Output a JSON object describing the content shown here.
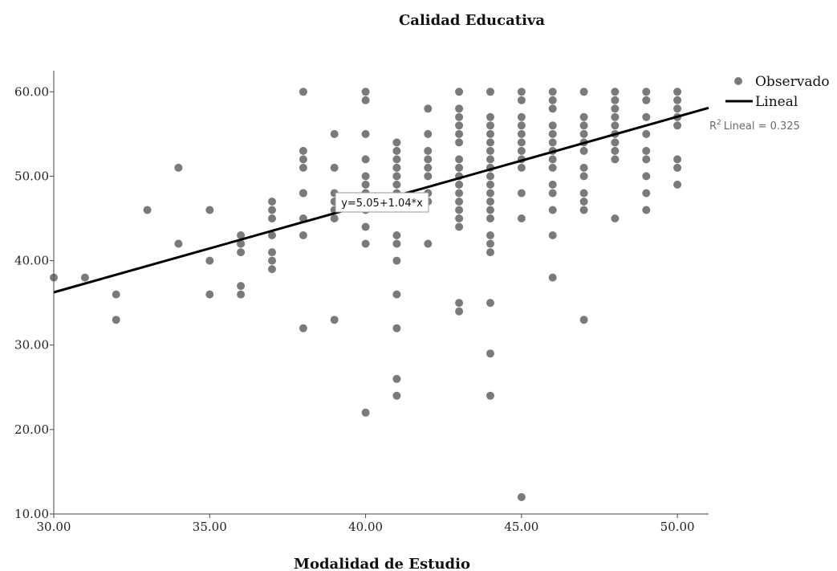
{
  "chart_data": {
    "type": "scatter",
    "title": "Calidad Educativa",
    "xlabel": "Modalidad de Estudio",
    "ylabel": "",
    "xlim": [
      30,
      51
    ],
    "ylim": [
      10,
      62.5
    ],
    "xticks": [
      "30.00",
      "35.00",
      "40.00",
      "45.00",
      "50.00"
    ],
    "yticks": [
      "10.00",
      "20.00",
      "30.00",
      "40.00",
      "50.00",
      "60.00"
    ],
    "grid": false,
    "legend_position": "top-right",
    "legend": {
      "observed": "Observado",
      "fit": "Lineal"
    },
    "r2_label": "Lineal = 0.325",
    "r2_prefix": "R",
    "r2_sup": "2",
    "fit_equation": "y=5.05+1.04*x",
    "fit": {
      "intercept": 5.05,
      "slope": 1.04
    },
    "colors": {
      "points": "#7a7a7a",
      "line": "#000000",
      "axis": "#444444"
    },
    "series": [
      {
        "name": "Observado",
        "x": [
          30,
          31,
          32,
          32,
          33,
          34,
          34,
          35,
          35,
          35,
          36,
          36,
          36,
          36,
          36,
          36,
          37,
          37,
          37,
          37,
          37,
          37,
          37,
          38,
          38,
          38,
          38,
          38,
          38,
          38,
          38,
          38,
          39,
          39,
          39,
          39,
          39,
          39,
          39,
          40,
          40,
          40,
          40,
          40,
          40,
          40,
          40,
          40,
          40,
          40,
          40,
          40,
          41,
          41,
          41,
          41,
          41,
          41,
          41,
          41,
          41,
          41,
          41,
          41,
          41,
          41,
          41,
          41,
          41,
          42,
          42,
          42,
          42,
          42,
          42,
          42,
          42,
          42,
          43,
          43,
          43,
          43,
          43,
          43,
          43,
          43,
          43,
          43,
          43,
          43,
          43,
          43,
          43,
          43,
          43,
          44,
          44,
          44,
          44,
          44,
          44,
          44,
          44,
          44,
          44,
          44,
          44,
          44,
          44,
          44,
          44,
          44,
          44,
          44,
          44,
          44,
          45,
          45,
          45,
          45,
          45,
          45,
          45,
          45,
          45,
          45,
          45,
          45,
          46,
          46,
          46,
          46,
          46,
          46,
          46,
          46,
          46,
          46,
          46,
          46,
          46,
          46,
          47,
          47,
          47,
          47,
          47,
          47,
          47,
          47,
          47,
          47,
          47,
          47,
          48,
          48,
          48,
          48,
          48,
          48,
          48,
          48,
          48,
          48,
          49,
          49,
          49,
          49,
          49,
          49,
          49,
          49,
          49,
          50,
          50,
          50,
          50,
          50,
          50,
          50,
          50
        ],
        "y": [
          38,
          38,
          36,
          33,
          46,
          51,
          42,
          46,
          40,
          36,
          43,
          42,
          41,
          37,
          36,
          42,
          47,
          46,
          45,
          43,
          41,
          40,
          39,
          60,
          53,
          52,
          51,
          48,
          45,
          43,
          32,
          48,
          55,
          51,
          48,
          46,
          45,
          33,
          47,
          60,
          59,
          55,
          52,
          50,
          49,
          48,
          47,
          46,
          44,
          42,
          22,
          48,
          54,
          53,
          52,
          51,
          50,
          49,
          48,
          47,
          43,
          42,
          40,
          36,
          32,
          26,
          24,
          51,
          50,
          58,
          55,
          53,
          52,
          51,
          50,
          48,
          42,
          47,
          60,
          58,
          57,
          56,
          54,
          52,
          51,
          49,
          48,
          47,
          46,
          45,
          44,
          35,
          34,
          50,
          55,
          60,
          57,
          56,
          54,
          53,
          52,
          51,
          50,
          49,
          48,
          47,
          46,
          43,
          42,
          41,
          35,
          29,
          24,
          45,
          55,
          51,
          60,
          59,
          57,
          56,
          54,
          53,
          51,
          48,
          45,
          12,
          55,
          52,
          60,
          59,
          58,
          55,
          54,
          53,
          52,
          51,
          48,
          46,
          43,
          38,
          56,
          49,
          60,
          57,
          56,
          55,
          54,
          51,
          50,
          48,
          47,
          46,
          33,
          53,
          60,
          59,
          58,
          57,
          56,
          55,
          54,
          52,
          45,
          53,
          60,
          59,
          57,
          55,
          52,
          48,
          46,
          53,
          50,
          60,
          59,
          56,
          52,
          51,
          49,
          58,
          57
        ]
      }
    ]
  }
}
